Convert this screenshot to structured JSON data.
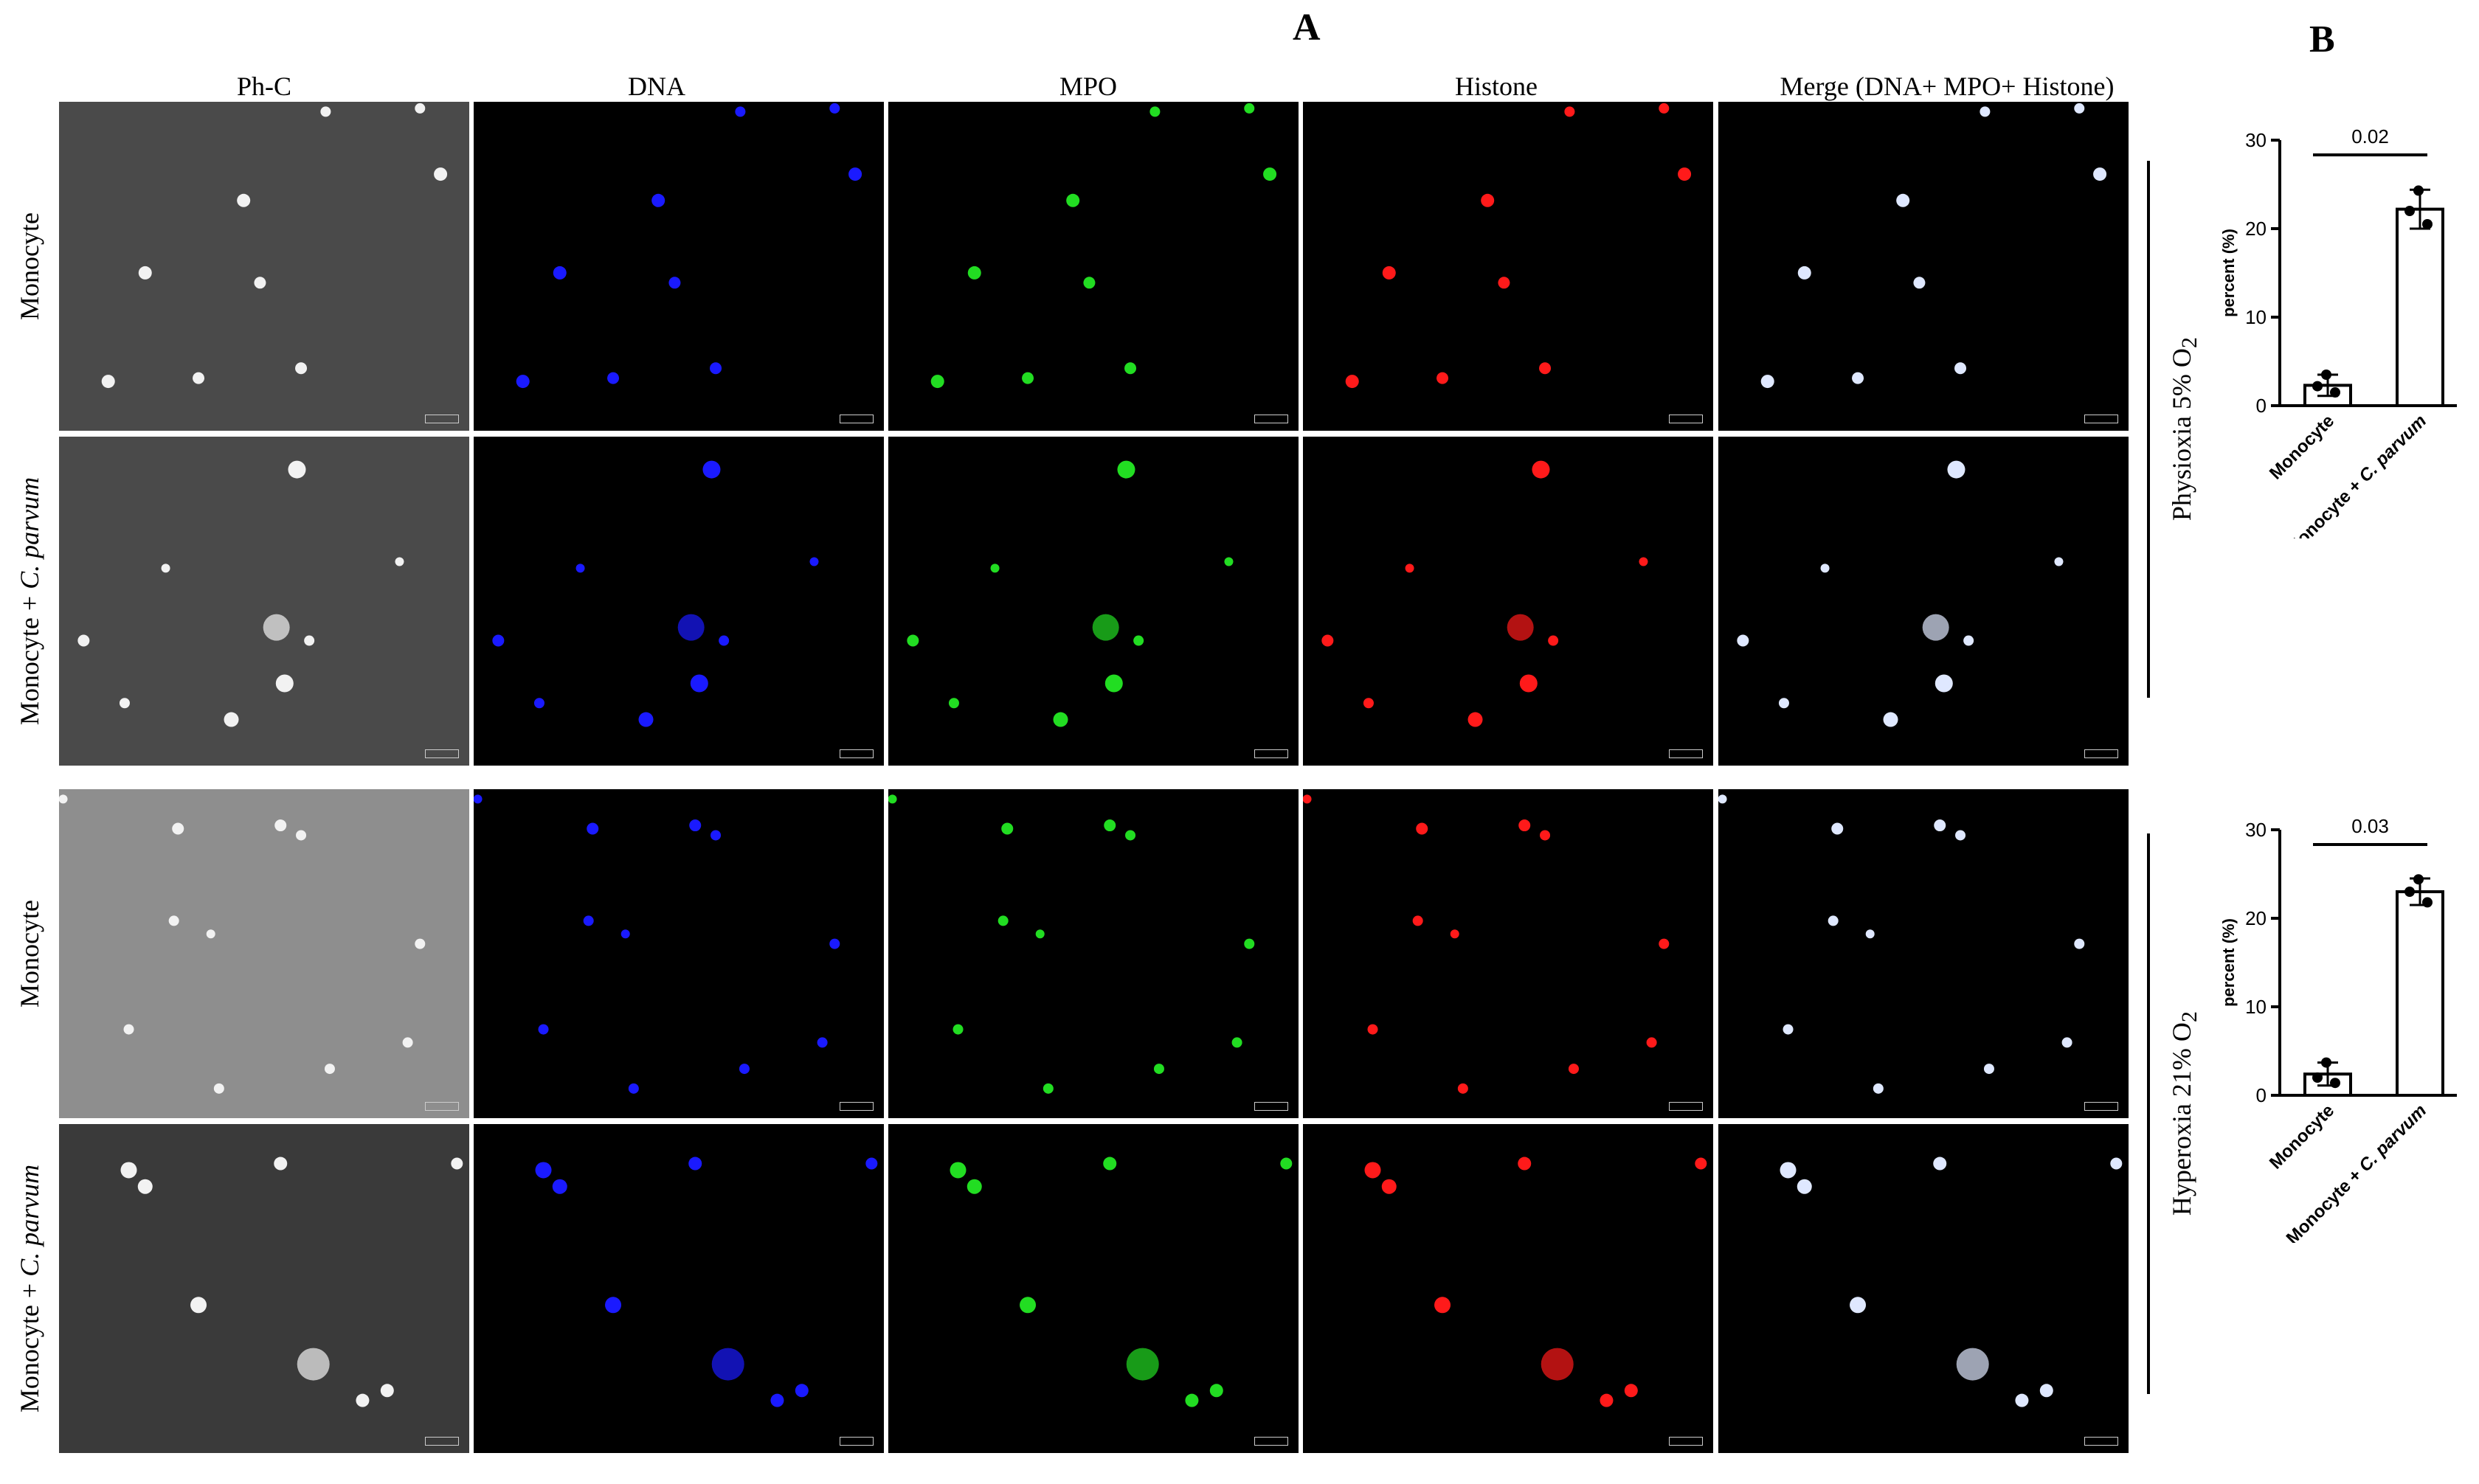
{
  "panel_a_label": "A",
  "panel_b_label": "B",
  "columns": [
    "Ph-C",
    "DNA",
    "MPO",
    "Histone",
    "Merge (DNA+ MPO+ Histone)"
  ],
  "rows": [
    {
      "label": "Monocyte",
      "italic_part": ""
    },
    {
      "label": "Monocyte + ",
      "italic_part": "C. parvum"
    },
    {
      "label": "Monocyte",
      "italic_part": ""
    },
    {
      "label": "Monocyte + ",
      "italic_part": "C. parvum"
    }
  ],
  "conditions": [
    {
      "prefix": "Physioxia 5% O",
      "sub": "2"
    },
    {
      "prefix": "Hyperoxia 21% O",
      "sub": "2"
    }
  ],
  "colors": {
    "dna": "#1a1aff",
    "mpo": "#22dd22",
    "histone": "#ff1a1a",
    "bar_fill": "#ffffff",
    "bar_stroke": "#000000"
  },
  "chart_data": [
    {
      "type": "bar",
      "title": "",
      "categories": [
        "Monocyte",
        "Monocyte + C. parvum"
      ],
      "category_italic": [
        "",
        "C. parvum"
      ],
      "values": [
        2.3,
        22.2
      ],
      "errors": [
        1.2,
        2.2
      ],
      "points": [
        [
          3.5,
          2.2,
          1.5
        ],
        [
          24.3,
          22.0,
          20.5
        ]
      ],
      "ylabel": "percent (%)",
      "ylim": [
        0,
        30
      ],
      "yticks": [
        "0",
        "10",
        "20",
        "30"
      ],
      "p_value": "0.02",
      "condition": "Physioxia 5% O2"
    },
    {
      "type": "bar",
      "title": "",
      "categories": [
        "Monocyte",
        "Monocyte + C. parvum"
      ],
      "category_italic": [
        "",
        "C. parvum"
      ],
      "values": [
        2.4,
        23.0
      ],
      "errors": [
        1.3,
        1.5
      ],
      "points": [
        [
          3.7,
          2.0,
          1.4
        ],
        [
          24.4,
          23.0,
          21.8
        ]
      ],
      "ylabel": "percent (%)",
      "ylim": [
        0,
        30
      ],
      "yticks": [
        "0",
        "10",
        "20",
        "30"
      ],
      "p_value": "0.03",
      "condition": "Hyperoxia 21% O2"
    }
  ]
}
